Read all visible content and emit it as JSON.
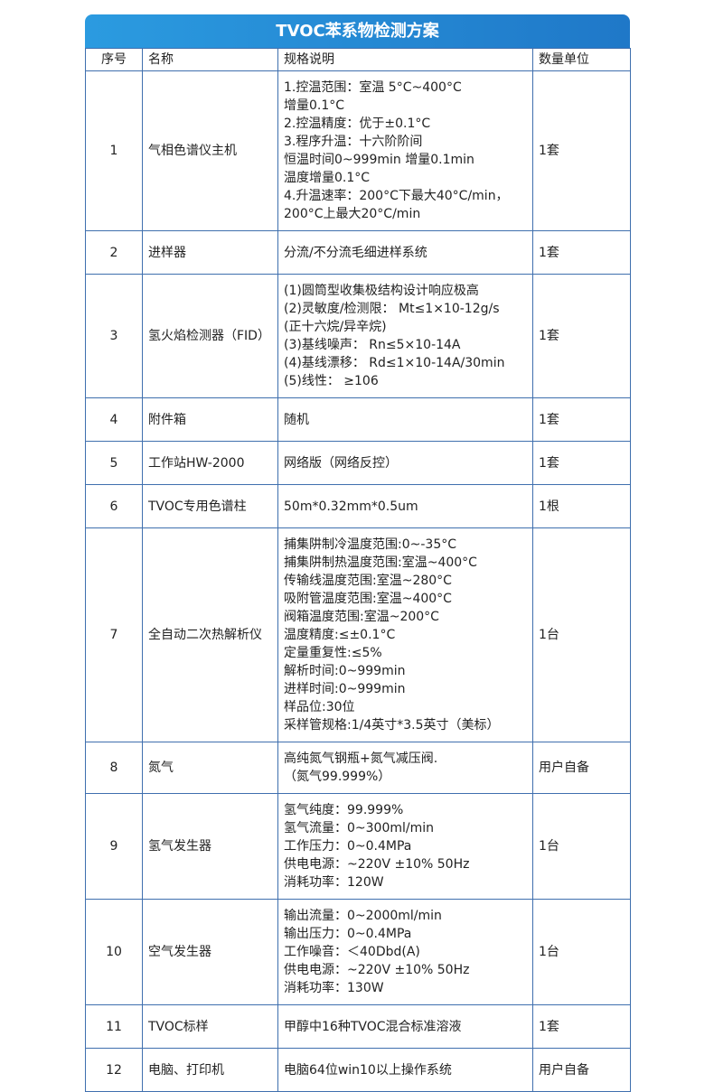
{
  "title": "TVOC苯系物检测方案",
  "headers": [
    "序号",
    "名称",
    "规格说明",
    "数量单位"
  ],
  "rows": [
    {
      "no": "1",
      "name": "气相色谱仪主机",
      "spec": "1.控温范围：室温 5°C~400°C\n增量0.1°C\n2.控温精度：优于±0.1°C\n3.程序升温：十六阶阶间\n恒温时间0~999min 增量0.1min\n温度增量0.1°C\n4.升温速率：200°C下最大40°C/min，\n200°C上最大20°C/min",
      "qty": "1套"
    },
    {
      "no": "2",
      "name": "进样器",
      "spec": "分流/不分流毛细进样系统",
      "qty": "1套"
    },
    {
      "no": "3",
      "name": "氢火焰检测器（FID）",
      "spec": "(1)圆筒型收集极结构设计响应极高\n(2)灵敏度/检测限： Mt≤1×10-12g/s\n(正十六烷/异辛烷)\n(3)基线噪声： Rn≤5×10-14A\n(4)基线漂移： Rd≤1×10-14A/30min\n(5)线性： ≥106",
      "qty": "1套"
    },
    {
      "no": "4",
      "name": "附件箱",
      "spec": "随机",
      "qty": "1套"
    },
    {
      "no": "5",
      "name": "工作站HW-2000",
      "spec": "网络版（网络反控）",
      "qty": "1套"
    },
    {
      "no": "6",
      "name": "TVOC专用色谱柱",
      "spec": "50m*0.32mm*0.5um",
      "qty": "1根"
    },
    {
      "no": "7",
      "name": "全自动二次热解析仪",
      "spec": "捕集阱制冷温度范围:0~-35°C\n捕集阱制热温度范围:室温~400°C\n传输线温度范围:室温~280°C\n吸附管温度范围:室温~400°C\n阀箱温度范围:室温~200°C\n温度精度:≤±0.1°C\n定量重复性:≤5%\n解析时间:0~999min\n进样时间:0~999min\n样品位:30位\n采样管规格:1/4英寸*3.5英寸（美标）",
      "qty": "1台"
    },
    {
      "no": "8",
      "name": "氮气",
      "spec": "高纯氮气钢瓶+氮气减压阀.\n（氮气99.999%）",
      "qty": "用户自备"
    },
    {
      "no": "9",
      "name": "氢气发生器",
      "spec": "氢气纯度：99.999%\n氢气流量：0~300ml/min\n工作压力：0~0.4MPa\n供电电源：~220V ±10% 50Hz\n消耗功率：120W",
      "qty": "1台"
    },
    {
      "no": "10",
      "name": "空气发生器",
      "spec": "输出流量：0~2000ml/min\n输出压力：0~0.4MPa\n工作噪音：＜40Dbd(A)\n供电电源：~220V ±10% 50Hz\n消耗功率：130W",
      "qty": "1台"
    },
    {
      "no": "11",
      "name": "TVOC标样",
      "spec": "甲醇中16种TVOC混合标准溶液",
      "qty": "1套"
    },
    {
      "no": "12",
      "name": "电脑、打印机",
      "spec": "电脑64位win10以上操作系统",
      "qty": "用户自备"
    }
  ]
}
